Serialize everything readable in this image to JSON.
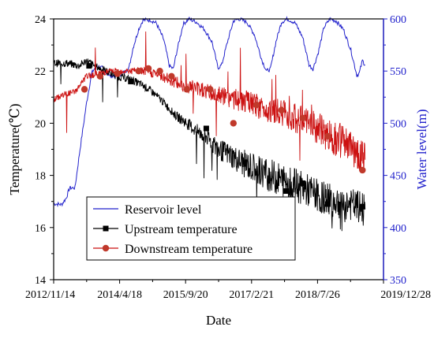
{
  "chart_data": {
    "type": "line",
    "xlabel": "Date",
    "ylabel_left": "Temperature(℃)",
    "ylabel_right": "Water level(m)",
    "x_tick_labels": [
      "2012/11/14",
      "2014/4/18",
      "2015/9/20",
      "2017/2/21",
      "2018/7/26",
      "2019/12/28"
    ],
    "x_tick_dates": [
      "2012-11-14",
      "2014-04-18",
      "2015-09-20",
      "2017-02-21",
      "2018-07-26",
      "2019-12-28"
    ],
    "xlim": [
      "2012-11-14",
      "2019-12-28"
    ],
    "y_left_lim": [
      14,
      24
    ],
    "y_left_ticks": [
      14,
      16,
      18,
      20,
      22,
      24
    ],
    "y_right_lim": [
      350,
      600
    ],
    "y_right_ticks": [
      350,
      400,
      450,
      500,
      550,
      600
    ],
    "grid": false,
    "legend_position": "bottom-left",
    "colors": {
      "reservoir": "#2222cc",
      "upstream": "#000000",
      "downstream": "#cc1111",
      "downstream_marker": "#c0392b",
      "right_axis": "#2222cc"
    },
    "series": [
      {
        "name": "Reservoir level",
        "axis": "right",
        "style": "line",
        "points": [
          [
            "2012-11-14",
            423
          ],
          [
            "2013-01-15",
            422
          ],
          [
            "2013-02-20",
            428
          ],
          [
            "2013-03-20",
            438
          ],
          [
            "2013-05-01",
            438
          ],
          [
            "2013-06-10",
            475
          ],
          [
            "2013-08-01",
            520
          ],
          [
            "2013-09-10",
            548
          ],
          [
            "2013-10-15",
            555
          ],
          [
            "2013-12-01",
            553
          ],
          [
            "2014-02-01",
            545
          ],
          [
            "2014-04-01",
            546
          ],
          [
            "2014-05-15",
            548
          ],
          [
            "2014-07-01",
            553
          ],
          [
            "2014-08-01",
            572
          ],
          [
            "2014-09-15",
            590
          ],
          [
            "2014-10-20",
            599
          ],
          [
            "2014-12-15",
            599
          ],
          [
            "2015-02-01",
            596
          ],
          [
            "2015-04-01",
            580
          ],
          [
            "2015-05-15",
            555
          ],
          [
            "2015-06-15",
            552
          ],
          [
            "2015-07-15",
            570
          ],
          [
            "2015-09-01",
            595
          ],
          [
            "2015-10-15",
            600
          ],
          [
            "2015-12-15",
            597
          ],
          [
            "2016-02-15",
            590
          ],
          [
            "2016-04-15",
            578
          ],
          [
            "2016-06-01",
            553
          ],
          [
            "2016-07-01",
            556
          ],
          [
            "2016-08-15",
            578
          ],
          [
            "2016-10-01",
            598
          ],
          [
            "2016-11-15",
            600
          ],
          [
            "2017-01-15",
            597
          ],
          [
            "2017-03-15",
            585
          ],
          [
            "2017-05-15",
            560
          ],
          [
            "2017-06-20",
            550
          ],
          [
            "2017-07-20",
            552
          ],
          [
            "2017-09-01",
            578
          ],
          [
            "2017-10-15",
            597
          ],
          [
            "2017-12-01",
            600
          ],
          [
            "2018-02-01",
            596
          ],
          [
            "2018-04-01",
            582
          ],
          [
            "2018-05-20",
            556
          ],
          [
            "2018-06-20",
            552
          ],
          [
            "2018-08-01",
            568
          ],
          [
            "2018-09-15",
            592
          ],
          [
            "2018-11-01",
            600
          ],
          [
            "2018-12-20",
            598
          ],
          [
            "2019-02-15",
            590
          ],
          [
            "2019-04-15",
            570
          ],
          [
            "2019-06-01",
            546
          ],
          [
            "2019-06-20",
            548
          ],
          [
            "2019-07-15",
            560
          ],
          [
            "2019-08-05",
            556
          ]
        ]
      },
      {
        "name": "Upstream temperature",
        "axis": "left",
        "style": "line-with-square-markers",
        "points": [
          [
            "2012-11-14",
            22.3
          ],
          [
            "2013-03-01",
            22.3
          ],
          [
            "2013-06-01",
            22.2
          ],
          [
            "2013-08-01",
            22.4
          ],
          [
            "2013-10-01",
            22.2
          ],
          [
            "2014-01-01",
            22.0
          ],
          [
            "2014-04-01",
            21.8
          ],
          [
            "2014-07-01",
            21.7
          ],
          [
            "2014-10-01",
            21.5
          ],
          [
            "2015-01-01",
            21.2
          ],
          [
            "2015-04-01",
            20.8
          ],
          [
            "2015-07-01",
            20.3
          ],
          [
            "2015-10-01",
            20.0
          ],
          [
            "2015-12-15",
            19.7
          ],
          [
            "2016-03-01",
            19.5
          ],
          [
            "2016-06-01",
            19.0
          ],
          [
            "2016-09-01",
            18.8
          ],
          [
            "2016-12-01",
            18.5
          ],
          [
            "2017-03-01",
            18.3
          ],
          [
            "2017-06-01",
            18.1
          ],
          [
            "2017-09-01",
            17.9
          ],
          [
            "2018-01-01",
            17.7
          ],
          [
            "2018-04-01",
            17.5
          ],
          [
            "2018-07-01",
            17.3
          ],
          [
            "2018-10-01",
            17.1
          ],
          [
            "2019-01-01",
            17.0
          ],
          [
            "2019-04-01",
            16.9
          ],
          [
            "2019-08-05",
            16.7
          ]
        ],
        "markers": [
          [
            "2013-08-20",
            22.2
          ],
          [
            "2014-07-15",
            21.6
          ],
          [
            "2016-03-01",
            19.8
          ],
          [
            "2017-11-20",
            17.4
          ],
          [
            "2018-04-01",
            17.7
          ],
          [
            "2018-10-15",
            16.9
          ],
          [
            "2019-07-15",
            16.8
          ]
        ]
      },
      {
        "name": "Downstream temperature",
        "axis": "left",
        "style": "line-with-circle-markers",
        "points": [
          [
            "2012-11-14",
            20.9
          ],
          [
            "2013-02-01",
            21.1
          ],
          [
            "2013-05-01",
            21.2
          ],
          [
            "2013-08-01",
            21.8
          ],
          [
            "2013-11-01",
            21.9
          ],
          [
            "2014-02-01",
            22.0
          ],
          [
            "2014-05-01",
            22.0
          ],
          [
            "2014-08-01",
            22.0
          ],
          [
            "2014-11-01",
            22.0
          ],
          [
            "2015-02-01",
            21.9
          ],
          [
            "2015-05-01",
            21.7
          ],
          [
            "2015-08-01",
            21.5
          ],
          [
            "2015-11-01",
            21.4
          ],
          [
            "2016-02-01",
            21.3
          ],
          [
            "2016-05-01",
            21.1
          ],
          [
            "2016-08-01",
            21.0
          ],
          [
            "2016-11-01",
            20.9
          ],
          [
            "2017-02-01",
            20.8
          ],
          [
            "2017-05-01",
            20.6
          ],
          [
            "2017-08-01",
            20.5
          ],
          [
            "2017-11-01",
            20.4
          ],
          [
            "2018-02-01",
            20.2
          ],
          [
            "2018-05-01",
            20.0
          ],
          [
            "2018-08-01",
            19.8
          ],
          [
            "2018-11-01",
            19.5
          ],
          [
            "2019-02-01",
            19.3
          ],
          [
            "2019-05-01",
            19.0
          ],
          [
            "2019-08-05",
            18.6
          ]
        ],
        "markers": [
          [
            "2013-07-15",
            21.3
          ],
          [
            "2013-11-15",
            21.8
          ],
          [
            "2014-04-01",
            21.9
          ],
          [
            "2014-09-15",
            22.0
          ],
          [
            "2014-12-01",
            22.1
          ],
          [
            "2015-03-01",
            22.0
          ],
          [
            "2015-06-01",
            21.8
          ],
          [
            "2015-10-01",
            21.3
          ],
          [
            "2016-04-01",
            21.3
          ],
          [
            "2016-10-01",
            20.0
          ],
          [
            "2017-04-01",
            20.7
          ],
          [
            "2017-10-15",
            20.5
          ],
          [
            "2018-04-01",
            20.2
          ],
          [
            "2018-10-15",
            19.5
          ],
          [
            "2019-07-15",
            18.2
          ]
        ]
      }
    ]
  }
}
